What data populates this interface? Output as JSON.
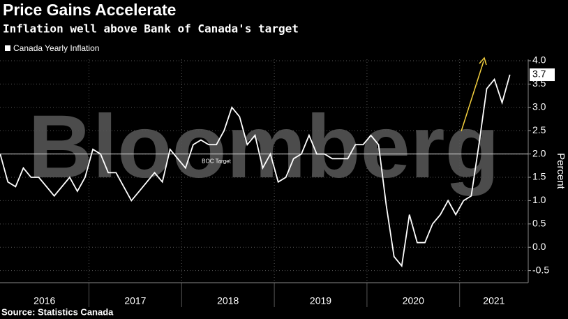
{
  "chart_data": {
    "type": "line",
    "title": "Price Gains Accelerate",
    "subtitle": "Inflation well above Bank of Canada's target",
    "watermark": "Bloomberg",
    "source": "Source: Statistics Canada",
    "y_label": "Percent",
    "target": 2.0,
    "target_label": "BOC Target",
    "end_label": "3.7",
    "x": [
      2016.042,
      2016.125,
      2016.208,
      2016.292,
      2016.375,
      2016.458,
      2016.542,
      2016.625,
      2016.708,
      2016.792,
      2016.875,
      2016.958,
      2017.042,
      2017.125,
      2017.208,
      2017.292,
      2017.375,
      2017.458,
      2017.542,
      2017.625,
      2017.708,
      2017.792,
      2017.875,
      2017.958,
      2018.042,
      2018.125,
      2018.208,
      2018.292,
      2018.375,
      2018.458,
      2018.542,
      2018.625,
      2018.708,
      2018.792,
      2018.875,
      2018.958,
      2019.042,
      2019.125,
      2019.208,
      2019.292,
      2019.375,
      2019.458,
      2019.542,
      2019.625,
      2019.708,
      2019.792,
      2019.875,
      2019.958,
      2020.042,
      2020.125,
      2020.208,
      2020.292,
      2020.375,
      2020.458,
      2020.542,
      2020.625,
      2020.708,
      2020.792,
      2020.875,
      2020.958,
      2021.042,
      2021.125,
      2021.208,
      2021.292,
      2021.375,
      2021.458,
      2021.542
    ],
    "series": [
      {
        "name": "Canada Yearly Inflation",
        "color": "#ffffff",
        "values": [
          2.0,
          1.4,
          1.3,
          1.7,
          1.5,
          1.5,
          1.3,
          1.1,
          1.3,
          1.5,
          1.2,
          1.5,
          2.1,
          2.0,
          1.6,
          1.6,
          1.3,
          1.0,
          1.2,
          1.4,
          1.6,
          1.4,
          2.1,
          1.9,
          1.7,
          2.2,
          2.3,
          2.2,
          2.2,
          2.5,
          3.0,
          2.8,
          2.2,
          2.4,
          1.7,
          2.0,
          1.4,
          1.5,
          1.9,
          2.0,
          2.4,
          2.0,
          2.0,
          1.9,
          1.9,
          1.9,
          2.2,
          2.2,
          2.4,
          2.2,
          0.9,
          -0.2,
          -0.4,
          0.7,
          0.1,
          0.1,
          0.5,
          0.7,
          1.0,
          0.7,
          1.0,
          1.1,
          2.2,
          3.4,
          3.6,
          3.1,
          3.7
        ]
      }
    ],
    "xlim": [
      2016.04,
      2021.74
    ],
    "xticks": [
      2017,
      2018,
      2019,
      2020,
      2021
    ],
    "year_labels": [
      "2016",
      "2017",
      "2018",
      "2019",
      "2020",
      "2021"
    ],
    "ylim": [
      -0.76,
      4.03
    ],
    "yticks": [
      {
        "value": 4,
        "label": "4.0"
      },
      3.5,
      {
        "value": 3,
        "label": "3.0"
      },
      2.5,
      {
        "value": 2,
        "label": "2.0"
      },
      1.5,
      {
        "value": 1,
        "label": "1.0"
      },
      0.5,
      {
        "value": 0,
        "label": "0.0"
      },
      -0.5
    ],
    "grid": true
  }
}
